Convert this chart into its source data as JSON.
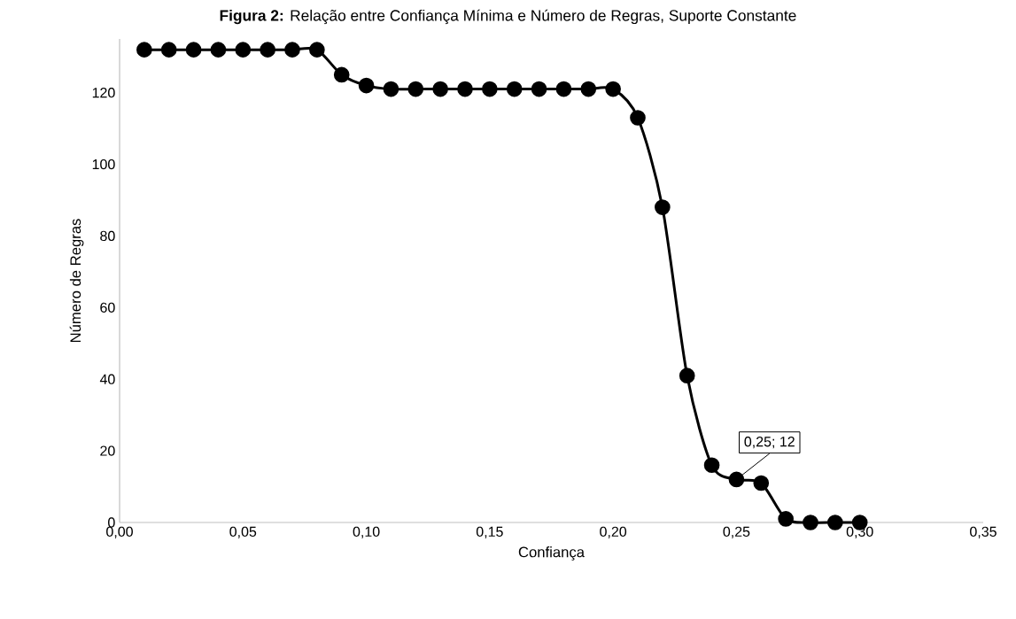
{
  "chart_data": {
    "type": "line",
    "title": "**Figura 2:** Relação entre Confiança Mínima e Número de Regras, Suporte Constante",
    "xlabel": "Confiança",
    "ylabel": "Número de Regras",
    "x": [
      0.01,
      0.02,
      0.03,
      0.04,
      0.05,
      0.06,
      0.07,
      0.08,
      0.09,
      0.1,
      0.11,
      0.12,
      0.13,
      0.14,
      0.15,
      0.16,
      0.17,
      0.18,
      0.19,
      0.2,
      0.21,
      0.22,
      0.23,
      0.24,
      0.25,
      0.26,
      0.27,
      0.28,
      0.29,
      0.3
    ],
    "series": [
      {
        "color": "#000000",
        "values": [
          132,
          132,
          132,
          132,
          132,
          132,
          132,
          132,
          125,
          122,
          121,
          121,
          121,
          121,
          121,
          121,
          121,
          121,
          121,
          121,
          113,
          88,
          41,
          16,
          12,
          11,
          1,
          0,
          0,
          0
        ]
      }
    ],
    "xlim": [
      0,
      0.35
    ],
    "xticks": [
      {
        "value": 0,
        "label": "0,00"
      },
      {
        "value": 0.05,
        "label": "0,05"
      },
      {
        "value": 0.1,
        "label": "0,10"
      },
      {
        "value": 0.15,
        "label": "0,15"
      },
      {
        "value": 0.2,
        "label": "0,20"
      },
      {
        "value": 0.25,
        "label": "0,25"
      },
      {
        "value": 0.3,
        "label": "0,30"
      },
      {
        "value": 0.35,
        "label": "0,35"
      }
    ],
    "ylim": [
      0,
      135
    ],
    "yticks": [
      0,
      20,
      40,
      60,
      80,
      100,
      120
    ],
    "marker": "circle",
    "line_style": "solid",
    "annotations": [
      {
        "text": "0,25; 12",
        "x": 0.25,
        "y": 12
      }
    ]
  }
}
